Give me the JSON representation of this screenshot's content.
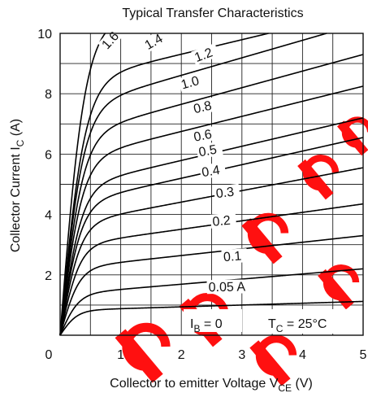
{
  "chart_data": {
    "type": "line",
    "title": "Typical Transfer Characteristics",
    "xlabel": {
      "main": "Collector to emitter Voltage  V",
      "sub": "CE",
      "unit": "  (V)"
    },
    "ylabel": {
      "main": "Collector Current  I",
      "sub": "C",
      "unit": "  (A)"
    },
    "xlim": [
      0,
      5
    ],
    "ylim": [
      0,
      10
    ],
    "xticks": [
      "0",
      "1",
      "2",
      "3",
      "4",
      "5"
    ],
    "yticks": [
      "2",
      "4",
      "6",
      "8",
      "10"
    ],
    "grid": true,
    "curves": [
      {
        "label": "1.6",
        "sat": 10.6,
        "slope": 0.0,
        "knee": 0.42
      },
      {
        "label": "1.4",
        "sat": 8.35,
        "slope": 0.48,
        "knee": 0.4
      },
      {
        "label": "1.2",
        "sat": 7.45,
        "slope": 0.58,
        "knee": 0.38
      },
      {
        "label": "1.0",
        "sat": 6.55,
        "slope": 0.55,
        "knee": 0.37
      },
      {
        "label": "0.8",
        "sat": 5.75,
        "slope": 0.5,
        "knee": 0.36
      },
      {
        "label": "0.6",
        "sat": 4.85,
        "slope": 0.47,
        "knee": 0.35
      },
      {
        "label": "0.5",
        "sat": 4.3,
        "slope": 0.45,
        "knee": 0.34
      },
      {
        "label": "0.4",
        "sat": 3.65,
        "slope": 0.38,
        "knee": 0.33
      },
      {
        "label": "0.3",
        "sat": 2.95,
        "slope": 0.28,
        "knee": 0.32
      },
      {
        "label": "0.2",
        "sat": 2.2,
        "slope": 0.22,
        "knee": 0.31
      },
      {
        "label": "0.1",
        "sat": 1.35,
        "slope": 0.17,
        "knee": 0.3
      },
      {
        "label": "0.05 A",
        "sat": 0.82,
        "slope": 0.06,
        "knee": 0.28
      }
    ],
    "annotations": {
      "ib_main": "I",
      "ib_sub": "B",
      "ib_rest": " = 0",
      "tc_main": "T",
      "tc_sub": "C",
      "tc_rest": " = 25°C"
    }
  },
  "watermark": {
    "color": "#ff1010"
  }
}
